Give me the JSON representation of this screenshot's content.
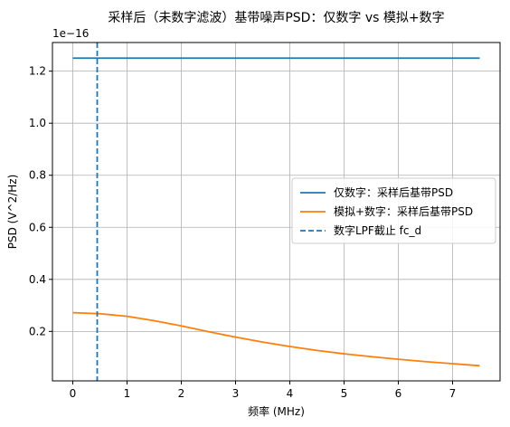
{
  "chart_data": {
    "type": "line",
    "title": "采样后（未数字滤波）基带噪声PSD：仅数字 vs 模拟+数字",
    "xlabel": "频率 (MHz)",
    "ylabel": "PSD (V^2/Hz)",
    "y_offset_label": "1e−16",
    "y_scale": 1e-16,
    "xlim": [
      -0.375,
      7.875
    ],
    "ylim": [
      0.01,
      1.31
    ],
    "x_ticks": [
      0,
      1,
      2,
      3,
      4,
      5,
      6,
      7
    ],
    "x_tick_labels": [
      "0",
      "1",
      "2",
      "3",
      "4",
      "5",
      "6",
      "7"
    ],
    "y_ticks": [
      0.2,
      0.4,
      0.6,
      0.8,
      1.0,
      1.2
    ],
    "y_tick_labels": [
      "0.2",
      "0.4",
      "0.6",
      "0.8",
      "1.0",
      "1.2"
    ],
    "grid": true,
    "legend_position": "center-right",
    "series": [
      {
        "name": "仅数字：采样后基带PSD",
        "color": "#1f77b4",
        "style": "solid",
        "x": [
          0,
          0.5,
          1,
          1.5,
          2,
          2.5,
          3,
          3.5,
          4,
          4.5,
          5,
          5.5,
          6,
          6.5,
          7,
          7.5
        ],
        "y": [
          1.25,
          1.25,
          1.25,
          1.25,
          1.25,
          1.25,
          1.25,
          1.25,
          1.25,
          1.25,
          1.25,
          1.25,
          1.25,
          1.25,
          1.25,
          1.25
        ]
      },
      {
        "name": "模拟+数字：采样后基带PSD",
        "color": "#ff7f0e",
        "style": "solid",
        "x": [
          0,
          0.5,
          1,
          1.5,
          2,
          2.5,
          3,
          3.5,
          4,
          4.5,
          5,
          5.5,
          6,
          6.5,
          7,
          7.5
        ],
        "y": [
          0.272,
          0.268,
          0.258,
          0.241,
          0.221,
          0.199,
          0.178,
          0.159,
          0.142,
          0.127,
          0.114,
          0.103,
          0.093,
          0.084,
          0.076,
          0.068
        ]
      },
      {
        "name": "数字LPF截止 fc_d",
        "color": "#1f77b4",
        "style": "dashed",
        "vline_x": 0.45
      }
    ]
  }
}
